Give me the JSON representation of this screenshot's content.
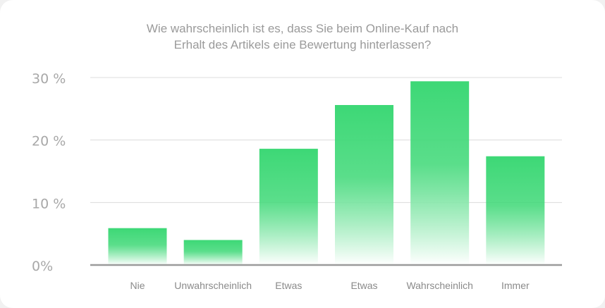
{
  "chart_data": {
    "type": "bar",
    "title_lines": [
      "Wie wahrscheinlich ist es, dass Sie beim Online-Kauf nach",
      "Erhalt des Artikels eine Bewertung hinterlassen?"
    ],
    "categories": [
      "Nie",
      "Unwahrscheinlich",
      "Etwas",
      "Etwas",
      "Wahrscheinlich",
      "Immer"
    ],
    "values": [
      5.9,
      4.0,
      18.6,
      25.6,
      29.4,
      17.4
    ],
    "ylim": [
      0,
      30
    ],
    "yticks": [
      {
        "value": 0,
        "label": "0%"
      },
      {
        "value": 10,
        "label": "10 %"
      },
      {
        "value": 20,
        "label": "20 %"
      },
      {
        "value": 30,
        "label": "30 %"
      }
    ],
    "grid": true,
    "bar_color": "#3dd876",
    "bar_fade_color": "#ffffff"
  }
}
